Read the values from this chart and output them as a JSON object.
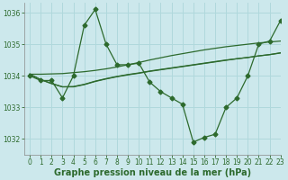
{
  "title": "Graphe pression niveau de la mer (hPa)",
  "bg_color": "#cce8ec",
  "line_color": "#2d6a2d",
  "grid_color": "#b0d8dc",
  "xlim": [
    -0.5,
    23
  ],
  "ylim": [
    1031.5,
    1036.3
  ],
  "yticks": [
    1032,
    1033,
    1034,
    1035,
    1036
  ],
  "xticks": [
    0,
    1,
    2,
    3,
    4,
    5,
    6,
    7,
    8,
    9,
    10,
    11,
    12,
    13,
    14,
    15,
    16,
    17,
    18,
    19,
    20,
    21,
    22,
    23
  ],
  "series_main": [
    1034.0,
    1033.85,
    1033.85,
    1033.3,
    1034.0,
    1035.6,
    1036.1,
    1035.0,
    1034.35,
    1034.35,
    1034.4,
    1033.8,
    1033.5,
    1033.3,
    1033.1,
    1031.9,
    1032.05,
    1032.15,
    1033.0,
    1033.3,
    1034.0,
    1035.0,
    1035.1,
    1035.75
  ],
  "series_line1": [
    1034.05,
    1034.05,
    1034.06,
    1034.07,
    1034.1,
    1034.13,
    1034.17,
    1034.22,
    1034.28,
    1034.35,
    1034.42,
    1034.5,
    1034.57,
    1034.64,
    1034.7,
    1034.76,
    1034.82,
    1034.87,
    1034.92,
    1034.96,
    1035.0,
    1035.04,
    1035.07,
    1035.1
  ],
  "series_line2": [
    1034.05,
    1033.88,
    1033.75,
    1033.65,
    1033.65,
    1033.72,
    1033.82,
    1033.9,
    1033.97,
    1034.03,
    1034.08,
    1034.14,
    1034.19,
    1034.24,
    1034.29,
    1034.34,
    1034.39,
    1034.44,
    1034.49,
    1034.54,
    1034.58,
    1034.63,
    1034.67,
    1034.72
  ],
  "series_line3": [
    1034.05,
    1033.88,
    1033.76,
    1033.65,
    1033.66,
    1033.73,
    1033.83,
    1033.91,
    1033.98,
    1034.04,
    1034.09,
    1034.15,
    1034.2,
    1034.25,
    1034.3,
    1034.35,
    1034.4,
    1034.45,
    1034.5,
    1034.54,
    1034.58,
    1034.63,
    1034.67,
    1034.73
  ],
  "marker": "D",
  "markersize": 2.5,
  "linewidth": 0.9,
  "title_fontsize": 7.0,
  "tick_fontsize": 5.5
}
